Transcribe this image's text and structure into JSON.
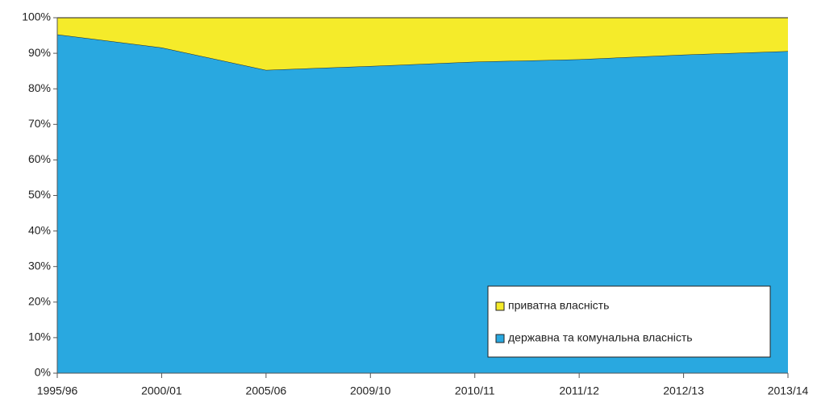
{
  "chart_data": {
    "type": "stacked_area",
    "categories": [
      "1995/96",
      "2000/01",
      "2005/06",
      "2009/10",
      "2010/11",
      "2011/12",
      "2012/13",
      "2013/14"
    ],
    "series": [
      {
        "name": "державна та комунальна власність",
        "color": "#29a8e0",
        "values": [
          95.3,
          91.6,
          85.3,
          86.4,
          87.6,
          88.3,
          89.6,
          90.6
        ]
      },
      {
        "name": "приватна власність",
        "color": "#f5eb2a",
        "values": [
          4.7,
          8.4,
          14.7,
          13.6,
          12.4,
          11.7,
          10.4,
          9.4
        ]
      }
    ],
    "ylim": [
      0,
      100
    ],
    "yticks": [
      {
        "value": 0,
        "label": "0%"
      },
      {
        "value": 10,
        "label": "10%"
      },
      {
        "value": 20,
        "label": "20%"
      },
      {
        "value": 30,
        "label": "30%"
      },
      {
        "value": 40,
        "label": "40%"
      },
      {
        "value": 50,
        "label": "50%"
      },
      {
        "value": 60,
        "label": "60%"
      },
      {
        "value": 70,
        "label": "70%"
      },
      {
        "value": 80,
        "label": "80%"
      },
      {
        "value": 90,
        "label": "90%"
      },
      {
        "value": 100,
        "label": "100%"
      }
    ],
    "legend": "lower right"
  }
}
